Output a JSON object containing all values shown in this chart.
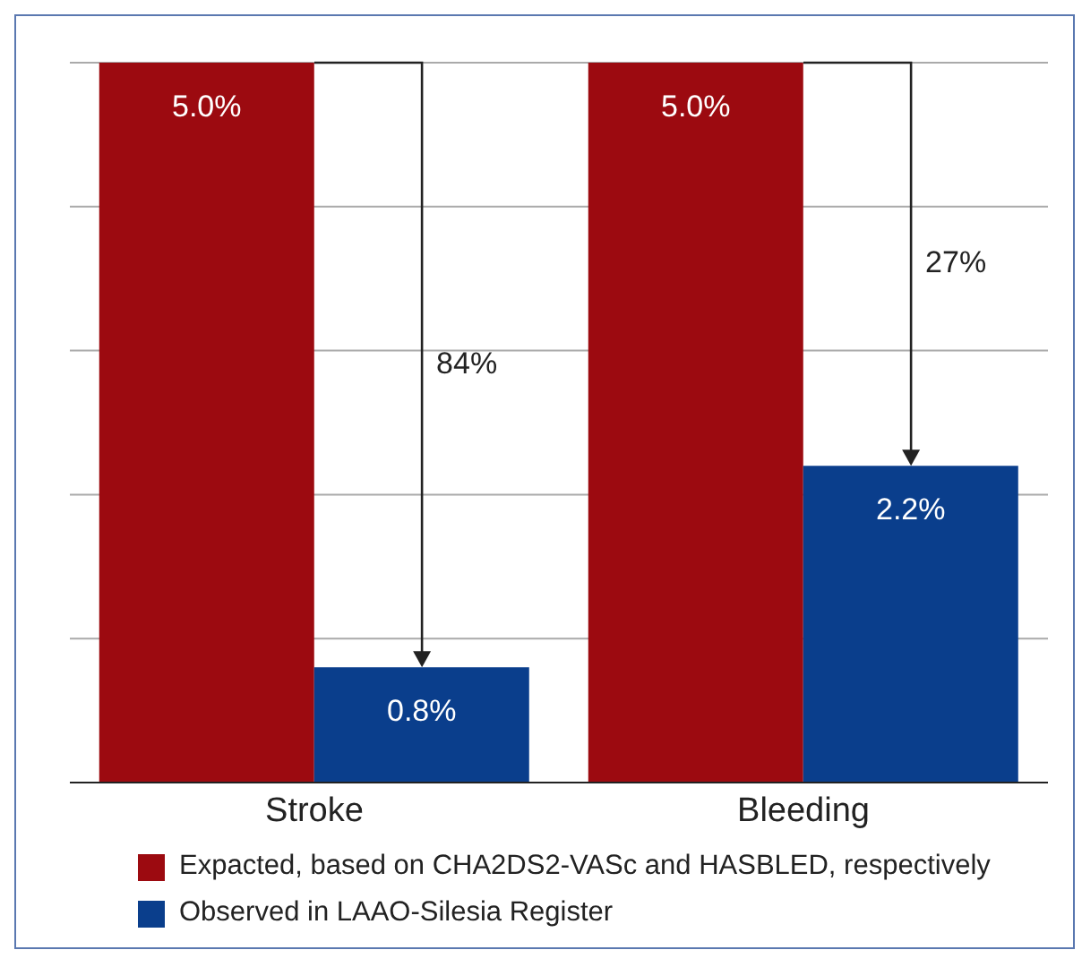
{
  "chart_data": {
    "type": "bar",
    "categories": [
      "Stroke",
      "Bleeding"
    ],
    "series": [
      {
        "name": "Expacted, based on CHA2DS2-VASc and HASBLED, respectively",
        "color": "#9c0a10",
        "values": [
          5.0,
          5.0
        ],
        "value_labels": [
          "5.0%",
          "5.0%"
        ]
      },
      {
        "name": "Observed in LAAO-Silesia Register",
        "color": "#0a3e8c",
        "values": [
          0.8,
          2.2
        ],
        "value_labels": [
          "0.8%",
          "2.2%"
        ]
      }
    ],
    "ylim": [
      0,
      5
    ],
    "tick_labels": "x",
    "annotations": [
      "84%",
      "27%"
    ],
    "grid": "y",
    "legend": "bottom"
  }
}
